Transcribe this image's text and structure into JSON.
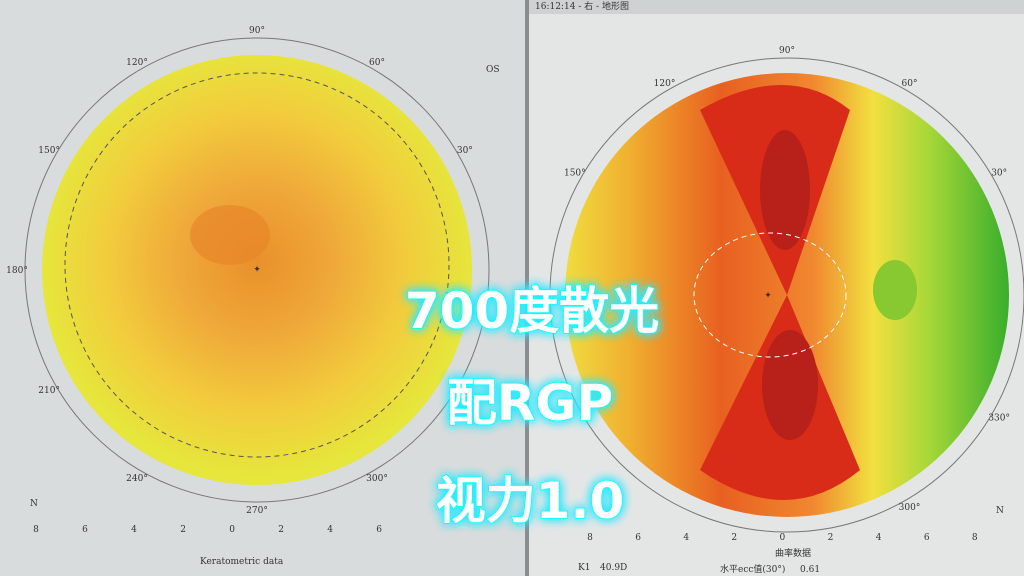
{
  "overlay": {
    "lines": [
      "700度散光",
      "配RGP",
      "视力1.0"
    ]
  },
  "left": {
    "eye": "OS",
    "corner": "N",
    "angles": [
      "90°",
      "60°",
      "30°",
      "120°",
      "150°",
      "180°",
      "210°",
      "240°",
      "270°",
      "300°"
    ],
    "scale": [
      "8",
      "6",
      "4",
      "2",
      "0",
      "2",
      "4",
      "6"
    ],
    "footer": "Keratometric data"
  },
  "right": {
    "header": "16:12:14 - 右 - 地形图",
    "corner": "N",
    "angles": [
      "90°",
      "60°",
      "30°",
      "120°",
      "150°",
      "300°",
      "330°"
    ],
    "scale": [
      "8",
      "6",
      "4",
      "2",
      "0",
      "2",
      "4",
      "6",
      "8"
    ],
    "footer": "曲率数据",
    "k_label": "K1",
    "k_value": "40.9D",
    "ecc_label": "水平ecc值(30°)",
    "ecc_value": "0.61"
  }
}
